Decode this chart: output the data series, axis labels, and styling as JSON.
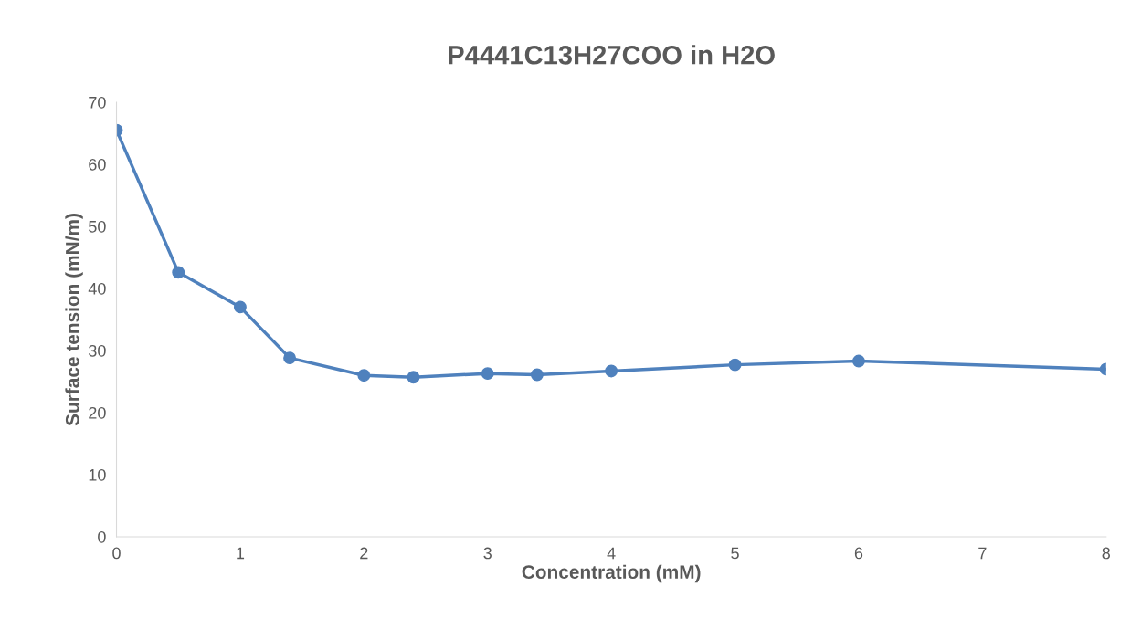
{
  "chart_data": {
    "type": "line",
    "title": "P4441C13H27COO in H2O",
    "xlabel": "Concentration (mM)",
    "ylabel": "Surface tension (mN/m)",
    "x": [
      0,
      0.5,
      1,
      1.4,
      2,
      2.4,
      3,
      3.4,
      4,
      5,
      6,
      8
    ],
    "series": [
      {
        "color": "#4f81bd",
        "values": [
          65.5,
          42.6,
          37.0,
          28.8,
          26.0,
          25.7,
          26.3,
          26.1,
          26.7,
          27.7,
          28.3,
          27.0
        ]
      }
    ],
    "xlim": [
      0,
      8
    ],
    "xticks": [
      0,
      1,
      2,
      3,
      4,
      5,
      6,
      7,
      8
    ],
    "ylim": [
      0,
      70
    ],
    "yticks": [
      0,
      10,
      20,
      30,
      40,
      50,
      60,
      70
    ],
    "grid": false,
    "legend": false,
    "marker": "circle",
    "line_style": "solid"
  }
}
